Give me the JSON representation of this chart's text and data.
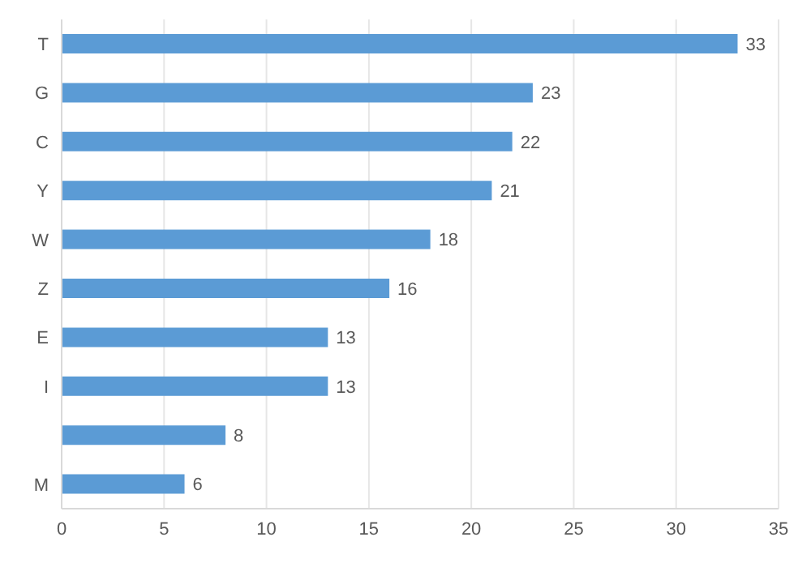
{
  "chart_data": {
    "type": "bar",
    "orientation": "horizontal",
    "categories": [
      "T",
      "G",
      "C",
      "Y",
      "W",
      "Z",
      "E",
      "I",
      null,
      "M"
    ],
    "values": [
      33,
      23,
      22,
      21,
      18,
      16,
      13,
      13,
      8,
      6
    ],
    "color": "#5b9bd5",
    "xlim": [
      0,
      35
    ],
    "xticks": [
      0,
      5,
      10,
      15,
      20,
      25,
      30,
      35
    ],
    "grid": "x",
    "data_labels": true
  }
}
